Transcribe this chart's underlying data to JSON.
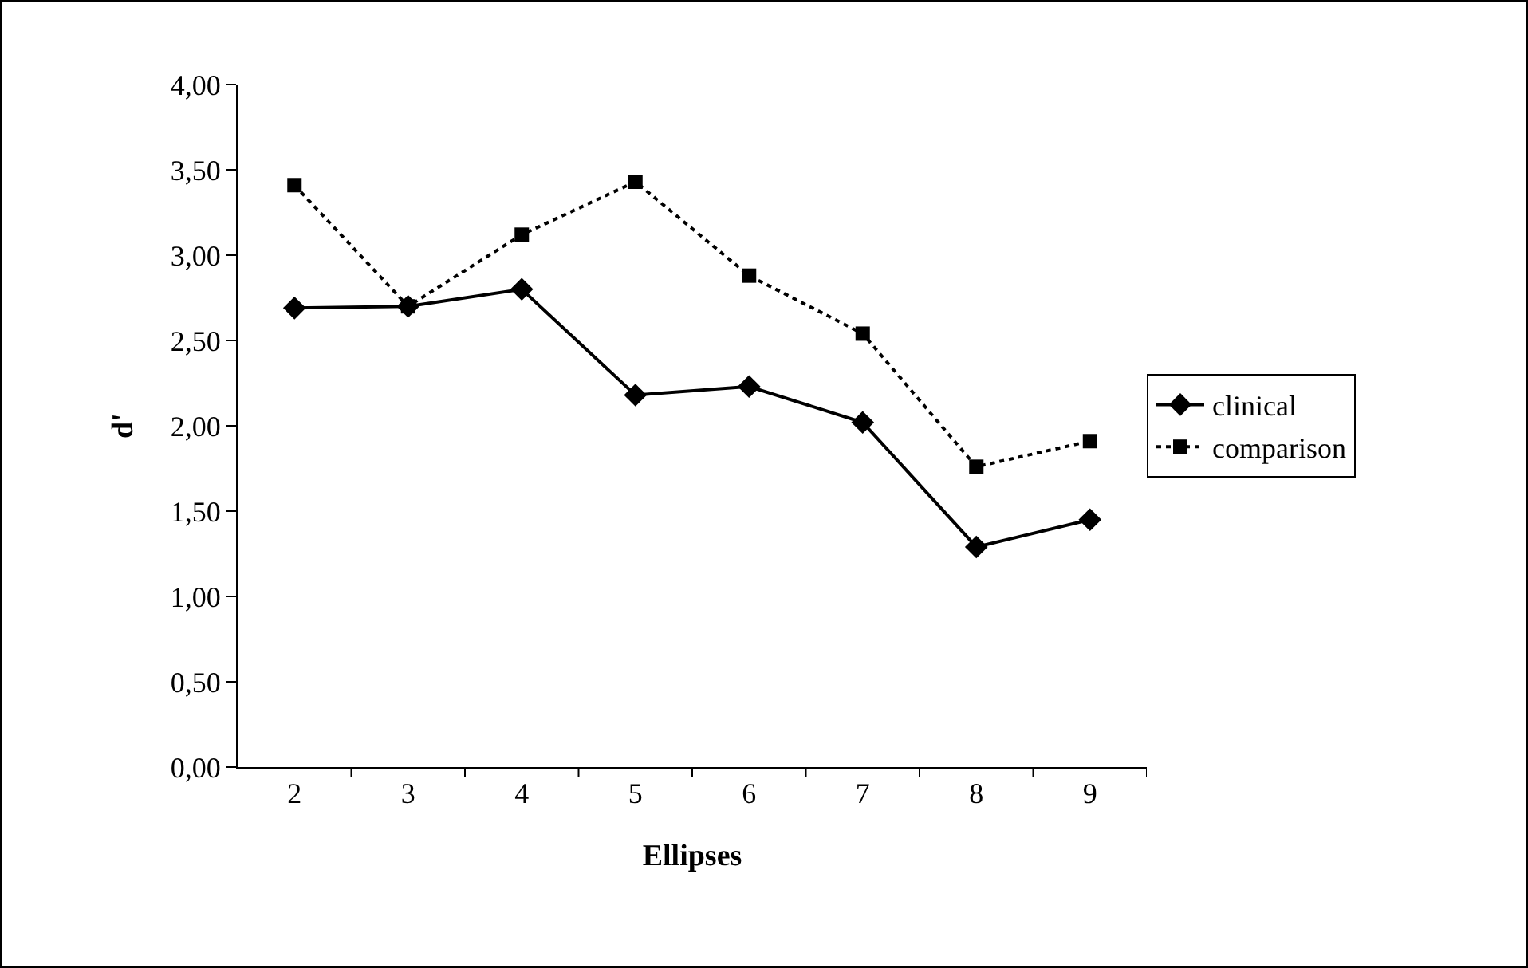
{
  "chart_data": {
    "type": "line",
    "xlabel": "Ellipses",
    "ylabel": "d'",
    "categories": [
      "2",
      "3",
      "4",
      "5",
      "6",
      "7",
      "8",
      "9"
    ],
    "series": [
      {
        "name": "clinical",
        "color": "#000000",
        "marker": "diamond",
        "line_style": "solid",
        "values": [
          2.69,
          2.7,
          2.8,
          2.18,
          2.23,
          2.02,
          1.29,
          1.45
        ]
      },
      {
        "name": "comparison",
        "color": "#000000",
        "marker": "square",
        "line_style": "dotted",
        "values": [
          3.41,
          2.7,
          3.12,
          3.43,
          2.88,
          2.54,
          1.76,
          1.91
        ]
      }
    ],
    "ylim": [
      0,
      4
    ],
    "yticks": [
      {
        "value": 0,
        "label": "0,00"
      },
      {
        "value": 0.5,
        "label": "0,50"
      },
      {
        "value": 1,
        "label": "1,00"
      },
      {
        "value": 1.5,
        "label": "1,50"
      },
      {
        "value": 2,
        "label": "2,00"
      },
      {
        "value": 2.5,
        "label": "2,50"
      },
      {
        "value": 3,
        "label": "3,00"
      },
      {
        "value": 3.5,
        "label": "3,50"
      },
      {
        "value": 4,
        "label": "4,00"
      }
    ],
    "grid": false,
    "legend": "right"
  }
}
